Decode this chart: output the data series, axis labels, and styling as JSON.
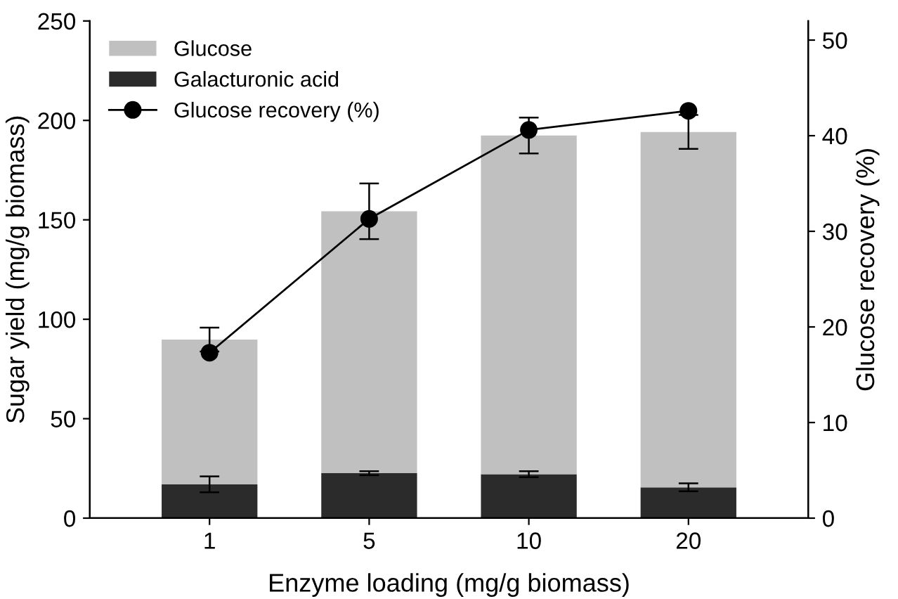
{
  "chart_data": {
    "type": "bar",
    "stacked": true,
    "xlabel": "Enzyme loading (mg/g biomass)",
    "ylabel": "Sugar yield (mg/g biomass)",
    "y2label": "Glucose recovery (%)",
    "categories": [
      "1",
      "5",
      "10",
      "20"
    ],
    "series": [
      {
        "name": "Galacturonic acid",
        "color": "#2b2b2b",
        "values": [
          17,
          22.6,
          22.1,
          15.5
        ],
        "errors": [
          4,
          1,
          1.5,
          2
        ]
      },
      {
        "name": "Glucose",
        "color": "#c0c0c0",
        "values": [
          72.8,
          131.7,
          170.3,
          178.7
        ],
        "errors": [
          6,
          14,
          9,
          8.5
        ]
      },
      {
        "name": "Glucose recovery (%)",
        "type": "line",
        "axis": "y2",
        "color": "#000000",
        "marker": "circle",
        "values": [
          17.3,
          31.3,
          40.6,
          42.6
        ]
      }
    ],
    "ylim": [
      0,
      250
    ],
    "yticks": [
      0,
      50,
      100,
      150,
      200,
      250
    ],
    "y2lim": [
      0,
      52
    ],
    "y2ticks": [
      0,
      10,
      20,
      30,
      40,
      50
    ],
    "grid": false,
    "legend": "top left"
  }
}
